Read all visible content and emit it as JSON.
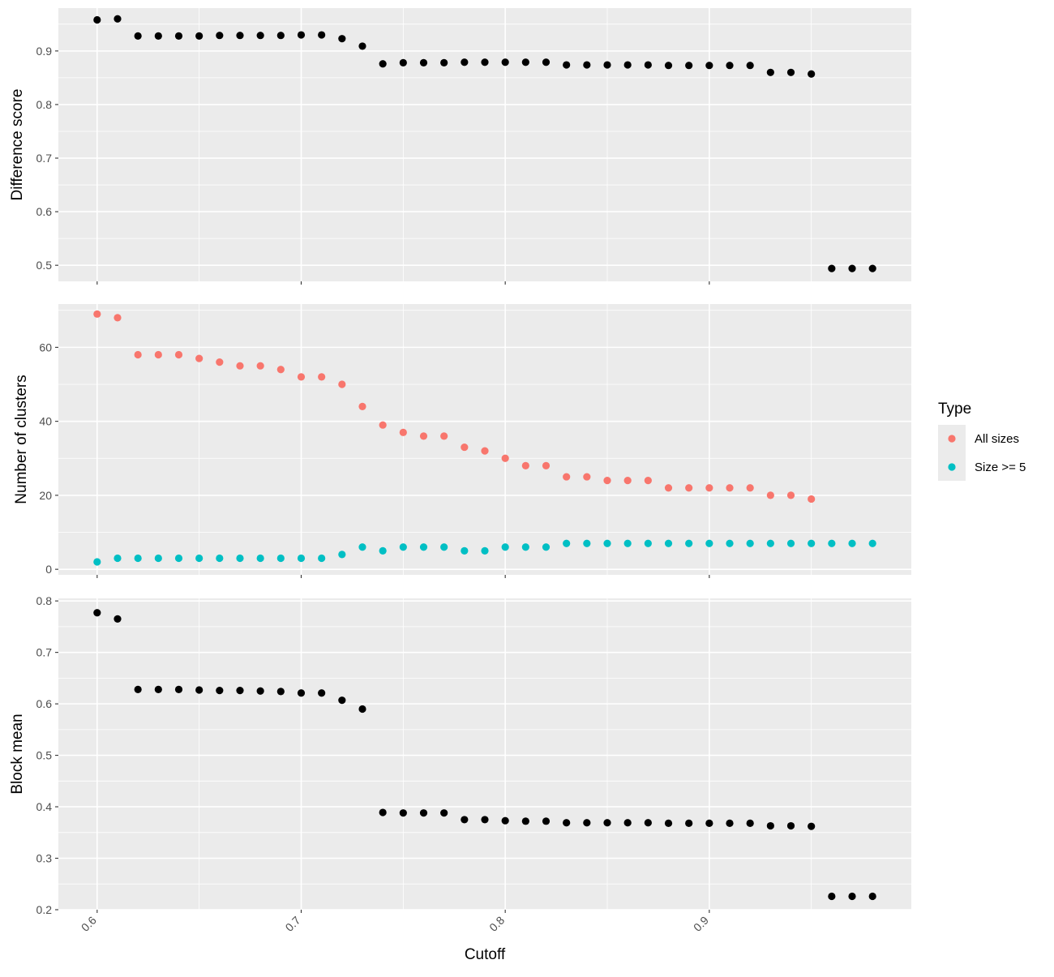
{
  "chart_data": {
    "type": "scatter",
    "x_label": "Cutoff",
    "x_ticks": [
      "0.6",
      "0.7",
      "0.8",
      "0.9"
    ],
    "x_tick_values": [
      0.6,
      0.7,
      0.8,
      0.9
    ],
    "xlim": [
      0.581,
      0.999
    ],
    "legend": {
      "title": "Type",
      "placement": "right",
      "items": [
        {
          "label": "All sizes",
          "color": "#F8766D"
        },
        {
          "label": "Size >= 5",
          "color": "#00BFC4"
        }
      ]
    },
    "panels": [
      {
        "id": "difference",
        "y_label": "Difference score",
        "ylim": [
          0.47,
          0.98
        ],
        "y_ticks": [
          "0.5",
          "0.6",
          "0.7",
          "0.8",
          "0.9"
        ],
        "y_tick_values": [
          0.5,
          0.6,
          0.7,
          0.8,
          0.9
        ],
        "series": [
          {
            "color": "#000000",
            "x": [
              0.6,
              0.61,
              0.62,
              0.63,
              0.64,
              0.65,
              0.66,
              0.67,
              0.68,
              0.69,
              0.7,
              0.71,
              0.72,
              0.73,
              0.74,
              0.75,
              0.76,
              0.77,
              0.78,
              0.79,
              0.8,
              0.81,
              0.82,
              0.83,
              0.84,
              0.85,
              0.86,
              0.87,
              0.88,
              0.89,
              0.9,
              0.91,
              0.92,
              0.93,
              0.94,
              0.95,
              0.96,
              0.97,
              0.98
            ],
            "y": [
              0.958,
              0.96,
              0.928,
              0.928,
              0.928,
              0.928,
              0.929,
              0.929,
              0.929,
              0.929,
              0.93,
              0.93,
              0.923,
              0.909,
              0.876,
              0.878,
              0.878,
              0.878,
              0.879,
              0.879,
              0.879,
              0.879,
              0.879,
              0.874,
              0.874,
              0.874,
              0.874,
              0.874,
              0.873,
              0.873,
              0.873,
              0.873,
              0.873,
              0.86,
              0.86,
              0.857,
              0.494,
              0.494,
              0.494
            ]
          }
        ]
      },
      {
        "id": "clusters",
        "y_label": "Number of clusters",
        "ylim": [
          -1.5,
          71.7
        ],
        "y_ticks": [
          "0",
          "20",
          "40",
          "60"
        ],
        "y_tick_values": [
          0,
          20,
          40,
          60
        ],
        "series": [
          {
            "name": "All sizes",
            "color": "#F8766D",
            "x": [
              0.6,
              0.61,
              0.62,
              0.63,
              0.64,
              0.65,
              0.66,
              0.67,
              0.68,
              0.69,
              0.7,
              0.71,
              0.72,
              0.73,
              0.74,
              0.75,
              0.76,
              0.77,
              0.78,
              0.79,
              0.8,
              0.81,
              0.82,
              0.83,
              0.84,
              0.85,
              0.86,
              0.87,
              0.88,
              0.89,
              0.9,
              0.91,
              0.92,
              0.93,
              0.94,
              0.95
            ],
            "y": [
              69,
              68,
              58,
              58,
              58,
              57,
              56,
              55,
              55,
              54,
              52,
              52,
              50,
              44,
              39,
              37,
              36,
              36,
              33,
              32,
              30,
              28,
              28,
              25,
              25,
              24,
              24,
              24,
              22,
              22,
              22,
              22,
              22,
              20,
              20,
              19
            ]
          },
          {
            "name": "Size >= 5",
            "color": "#00BFC4",
            "x": [
              0.6,
              0.61,
              0.62,
              0.63,
              0.64,
              0.65,
              0.66,
              0.67,
              0.68,
              0.69,
              0.7,
              0.71,
              0.72,
              0.73,
              0.74,
              0.75,
              0.76,
              0.77,
              0.78,
              0.79,
              0.8,
              0.81,
              0.82,
              0.83,
              0.84,
              0.85,
              0.86,
              0.87,
              0.88,
              0.89,
              0.9,
              0.91,
              0.92,
              0.93,
              0.94,
              0.95,
              0.96,
              0.97,
              0.98
            ],
            "y": [
              2,
              3,
              3,
              3,
              3,
              3,
              3,
              3,
              3,
              3,
              3,
              3,
              4,
              6,
              5,
              6,
              6,
              6,
              5,
              5,
              6,
              6,
              6,
              7,
              7,
              7,
              7,
              7,
              7,
              7,
              7,
              7,
              7,
              7,
              7,
              7,
              7,
              7,
              7
            ]
          }
        ]
      },
      {
        "id": "block-mean",
        "y_label": "Block mean",
        "ylim": [
          0.2,
          0.805
        ],
        "y_ticks": [
          "0.2",
          "0.3",
          "0.4",
          "0.5",
          "0.6",
          "0.7",
          "0.8"
        ],
        "y_tick_values": [
          0.2,
          0.3,
          0.4,
          0.5,
          0.6,
          0.7,
          0.8
        ],
        "series": [
          {
            "color": "#000000",
            "x": [
              0.6,
              0.61,
              0.62,
              0.63,
              0.64,
              0.65,
              0.66,
              0.67,
              0.68,
              0.69,
              0.7,
              0.71,
              0.72,
              0.73,
              0.74,
              0.75,
              0.76,
              0.77,
              0.78,
              0.79,
              0.8,
              0.81,
              0.82,
              0.83,
              0.84,
              0.85,
              0.86,
              0.87,
              0.88,
              0.89,
              0.9,
              0.91,
              0.92,
              0.93,
              0.94,
              0.95,
              0.96,
              0.97,
              0.98
            ],
            "y": [
              0.777,
              0.765,
              0.628,
              0.628,
              0.628,
              0.627,
              0.626,
              0.626,
              0.625,
              0.624,
              0.621,
              0.621,
              0.607,
              0.59,
              0.389,
              0.388,
              0.388,
              0.388,
              0.375,
              0.375,
              0.373,
              0.372,
              0.372,
              0.369,
              0.369,
              0.369,
              0.369,
              0.369,
              0.368,
              0.368,
              0.368,
              0.368,
              0.368,
              0.363,
              0.363,
              0.362,
              0.226,
              0.226,
              0.226
            ]
          }
        ]
      }
    ]
  }
}
